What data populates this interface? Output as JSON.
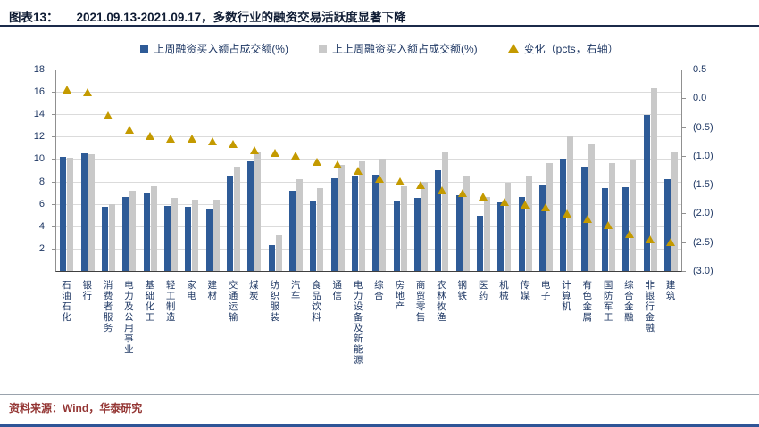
{
  "header": {
    "tag": "图表13：",
    "title": "2021.09.13-2021.09.17，多数行业的融资交易活跃度显著下降"
  },
  "legend": [
    {
      "label": "上周融资买入额占成交额(%)",
      "marker": "square",
      "color": "#2E5B97"
    },
    {
      "label": "上上周融资买入额占成交额(%)",
      "marker": "square",
      "color": "#C9C9C9"
    },
    {
      "label": "变化（pcts，右轴）",
      "marker": "triangle",
      "color": "#C49A00"
    }
  ],
  "footer": {
    "source": "资料来源：Wind，华泰研究"
  },
  "colors": {
    "bar_last_week": "#2E5B97",
    "bar_prev_week": "#C9C9C9",
    "change_triangle": "#C49A00",
    "axis_text": "#1F3864",
    "source_text": "#943634",
    "bottom_bar": "#2F5597"
  },
  "chart_data": {
    "type": "bar",
    "subtype": "grouped-bars-with-scatter-triangles-on-secondary-axis",
    "title": "2021.09.13-2021.09.17，多数行业的融资交易活跃度显著下降",
    "xlabel": "",
    "ylabel": "",
    "legend_position": "top",
    "grid": true,
    "categories": [
      "石油石化",
      "银行",
      "消费者服务",
      "电力及公用事业",
      "基础化工",
      "轻工制造",
      "家电",
      "建材",
      "交通运输",
      "煤炭",
      "纺织服装",
      "汽车",
      "食品饮料",
      "通信",
      "电力设备及新能源",
      "综合",
      "房地产",
      "商贸零售",
      "农林牧渔",
      "钢铁",
      "医药",
      "机械",
      "传媒",
      "电子",
      "计算机",
      "有色金属",
      "国防军工",
      "综合金融",
      "非银行金融",
      "建筑"
    ],
    "series": [
      {
        "name": "上周融资买入额占成交额(%)",
        "render": "bar",
        "axis": "left",
        "color": "#2E5B97",
        "values": [
          10.2,
          10.5,
          5.7,
          6.6,
          6.9,
          5.8,
          5.7,
          5.6,
          8.5,
          9.8,
          2.3,
          7.2,
          6.3,
          8.3,
          8.5,
          8.6,
          6.2,
          6.5,
          9.0,
          6.8,
          4.9,
          6.1,
          6.6,
          7.7,
          10.0,
          9.3,
          7.4,
          7.5,
          13.9,
          8.2
        ]
      },
      {
        "name": "上上周融资买入额占成交额(%)",
        "render": "bar",
        "axis": "left",
        "color": "#C9C9C9",
        "values": [
          10.1,
          10.4,
          6.0,
          7.2,
          7.6,
          6.5,
          6.4,
          6.4,
          9.3,
          10.7,
          3.2,
          8.2,
          7.4,
          9.5,
          9.8,
          10.0,
          7.6,
          8.0,
          10.6,
          8.5,
          6.6,
          7.9,
          8.5,
          9.6,
          12.0,
          11.4,
          9.6,
          9.9,
          16.3,
          10.7
        ]
      },
      {
        "name": "变化（pcts，右轴）",
        "render": "triangle",
        "axis": "right",
        "color": "#C49A00",
        "values": [
          0.15,
          0.1,
          -0.3,
          -0.55,
          -0.65,
          -0.7,
          -0.7,
          -0.75,
          -0.8,
          -0.9,
          -0.95,
          -1.0,
          -1.1,
          -1.15,
          -1.25,
          -1.4,
          -1.45,
          -1.5,
          -1.6,
          -1.65,
          -1.7,
          -1.8,
          -1.85,
          -1.9,
          -2.0,
          -2.1,
          -2.2,
          -2.35,
          -2.45,
          -2.5
        ]
      }
    ],
    "left_axis": {
      "min": 0,
      "max": 18,
      "step": 2,
      "ticks": [
        {
          "v": 18,
          "label": "18"
        },
        {
          "v": 16,
          "label": "16"
        },
        {
          "v": 14,
          "label": "14"
        },
        {
          "v": 12,
          "label": "12"
        },
        {
          "v": 10,
          "label": "10"
        },
        {
          "v": 8,
          "label": "8"
        },
        {
          "v": 6,
          "label": "6"
        },
        {
          "v": 4,
          "label": "4"
        },
        {
          "v": 2,
          "label": "2"
        }
      ]
    },
    "right_axis": {
      "min": -3.0,
      "max": 0.5,
      "step": 0.5,
      "ticks": [
        {
          "v": 0.5,
          "label": "0.5"
        },
        {
          "v": 0.0,
          "label": "0.0"
        },
        {
          "v": -0.5,
          "label": "(0.5)"
        },
        {
          "v": -1.0,
          "label": "(1.0)"
        },
        {
          "v": -1.5,
          "label": "(1.5)"
        },
        {
          "v": -2.0,
          "label": "(2.0)"
        },
        {
          "v": -2.5,
          "label": "(2.5)"
        },
        {
          "v": -3.0,
          "label": "(3.0)"
        }
      ]
    }
  }
}
